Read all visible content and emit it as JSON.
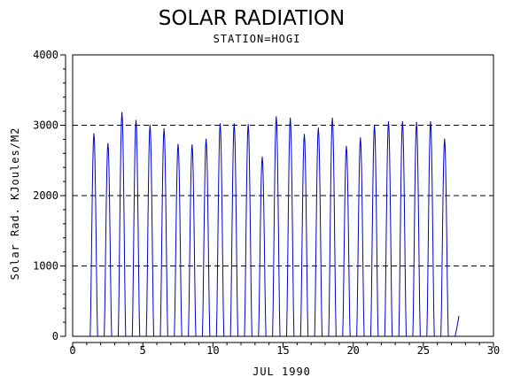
{
  "chart_data": {
    "type": "line",
    "title": "SOLAR RADIATION",
    "subtitle": "STATION=HOGI",
    "xlabel": "JUL 1990",
    "ylabel": "Solar Rad. KJoules/M2",
    "xlim": [
      0,
      30
    ],
    "ylim": [
      0,
      4000
    ],
    "x_ticks": [
      0,
      5,
      10,
      15,
      20,
      25,
      30
    ],
    "y_ticks": [
      0,
      1000,
      2000,
      3000,
      4000
    ],
    "grid": "horizontal dashed",
    "series": [
      {
        "color": "#0000cc",
        "daily_peaks": [
          {
            "day": 1,
            "peak": 2880
          },
          {
            "day": 2,
            "peak": 2740
          },
          {
            "day": 3,
            "peak": 3180
          },
          {
            "day": 4,
            "peak": 3070
          },
          {
            "day": 5,
            "peak": 3000
          },
          {
            "day": 6,
            "peak": 2950
          },
          {
            "day": 7,
            "peak": 2730
          },
          {
            "day": 8,
            "peak": 2720
          },
          {
            "day": 9,
            "peak": 2800
          },
          {
            "day": 10,
            "peak": 3020
          },
          {
            "day": 11,
            "peak": 3020
          },
          {
            "day": 12,
            "peak": 3010
          },
          {
            "day": 13,
            "peak": 2550
          },
          {
            "day": 14,
            "peak": 3120
          },
          {
            "day": 15,
            "peak": 3100
          },
          {
            "day": 16,
            "peak": 2870
          },
          {
            "day": 17,
            "peak": 2960
          },
          {
            "day": 18,
            "peak": 3100
          },
          {
            "day": 19,
            "peak": 2700
          },
          {
            "day": 20,
            "peak": 2820
          },
          {
            "day": 21,
            "peak": 3000
          },
          {
            "day": 22,
            "peak": 3050
          },
          {
            "day": 23,
            "peak": 3050
          },
          {
            "day": 24,
            "peak": 3040
          },
          {
            "day": 25,
            "peak": 3050
          },
          {
            "day": 26,
            "peak": 2800
          },
          {
            "day": 27,
            "peak": 280
          }
        ]
      }
    ]
  }
}
